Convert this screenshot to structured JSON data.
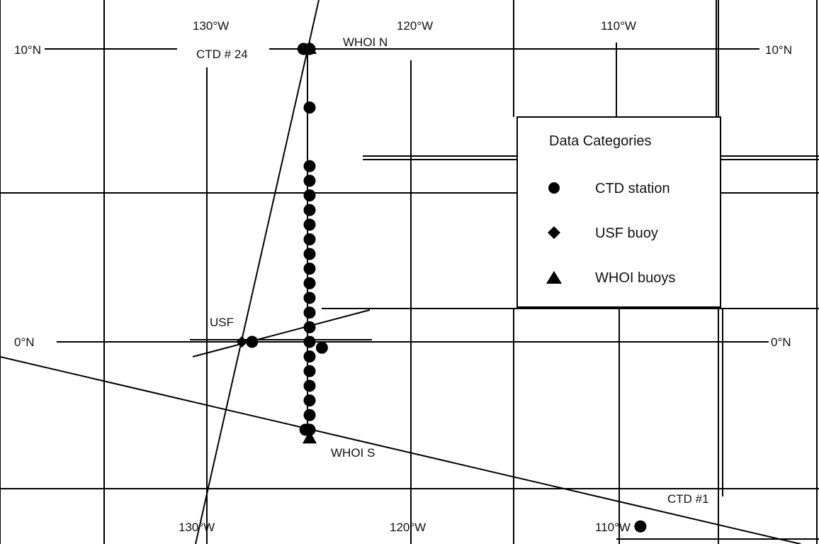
{
  "map": {
    "type": "station-location-map",
    "longitude_labels_top": [
      "130°W",
      "120°W",
      "110°W"
    ],
    "longitude_labels_bottom": [
      "130°W",
      "120°W",
      "110°W"
    ],
    "latitude_labels_left": [
      "10°N",
      "0°N"
    ],
    "latitude_labels_right": [
      "10°N",
      "0°N"
    ],
    "annotations": {
      "ctd_24": "CTD # 24",
      "whoi_n": "WHOI N",
      "usf": "USF",
      "whoi_s": "WHOI S",
      "ctd_1": "CTD #1"
    },
    "legend": {
      "title": "Data Categories",
      "items": [
        {
          "label": "CTD station",
          "symbol": "circle"
        },
        {
          "label": "USF buoy",
          "symbol": "diamond"
        },
        {
          "label": "WHOI buoys",
          "symbol": "triangle"
        }
      ]
    },
    "stations": {
      "ctd_line_lon": -125,
      "ctd_lats": [
        10,
        8,
        6,
        5.5,
        5,
        4.5,
        4,
        3.5,
        3,
        2.5,
        2,
        1.5,
        1,
        0.5,
        0,
        -0.5,
        -1,
        -1.5,
        -2,
        -2.5,
        -3
      ],
      "ctd_extra": [
        {
          "lon": -125.3,
          "lat": 10
        },
        {
          "lon": -127.8,
          "lat": 0
        },
        {
          "lon": -124.4,
          "lat": -0.2
        },
        {
          "lon": -125.2,
          "lat": -3
        },
        {
          "lon": -108.9,
          "lat": -6.3
        }
      ],
      "usf_buoy": {
        "lon": -128.3,
        "lat": 0
      },
      "whoi_buoys": [
        {
          "lon": -125,
          "lat": 10
        },
        {
          "lon": -125,
          "lat": -3.3
        }
      ]
    }
  }
}
